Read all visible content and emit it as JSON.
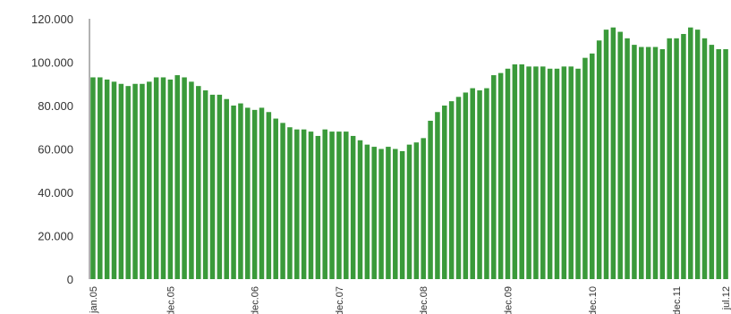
{
  "chart_data": {
    "type": "bar",
    "title": "",
    "xlabel": "",
    "ylabel": "",
    "ylim": [
      0,
      120000
    ],
    "y_ticks": [
      0,
      20000,
      40000,
      60000,
      80000,
      100000,
      120000
    ],
    "y_tick_labels": [
      "0",
      "20.000",
      "40.000",
      "60.000",
      "80.000",
      "100.000",
      "120.000"
    ],
    "x_label_indices": [
      0,
      11,
      23,
      35,
      47,
      59,
      71,
      83,
      90
    ],
    "x_tick_labels": [
      "jan.05",
      "dec.05",
      "dec.06",
      "dec.07",
      "dec.08",
      "dec.09",
      "dec.10",
      "dec.11",
      "jul.12"
    ],
    "grid": false,
    "legend": "none",
    "bar_color": "#3a9a3a",
    "axis_color": "#999999",
    "values": [
      93000,
      93000,
      92000,
      91000,
      90000,
      89000,
      90000,
      90000,
      91000,
      93000,
      93000,
      92000,
      94000,
      93000,
      91000,
      89000,
      87000,
      85000,
      85000,
      83000,
      80000,
      81000,
      79000,
      78000,
      79000,
      77000,
      74000,
      72000,
      70000,
      69000,
      69000,
      68000,
      66000,
      69000,
      68000,
      68000,
      68000,
      66000,
      64000,
      62000,
      61000,
      60000,
      61000,
      60000,
      59000,
      62000,
      63000,
      65000,
      73000,
      77000,
      80000,
      82000,
      84000,
      86000,
      88000,
      87000,
      88000,
      94000,
      95000,
      97000,
      99000,
      99000,
      98000,
      98000,
      98000,
      97000,
      97000,
      98000,
      98000,
      97000,
      102000,
      104000,
      110000,
      115000,
      116000,
      114000,
      111000,
      108000,
      107000,
      107000,
      107000,
      106000,
      111000,
      111000,
      113000,
      116000,
      115000,
      111000,
      108000,
      106000,
      106000
    ]
  }
}
